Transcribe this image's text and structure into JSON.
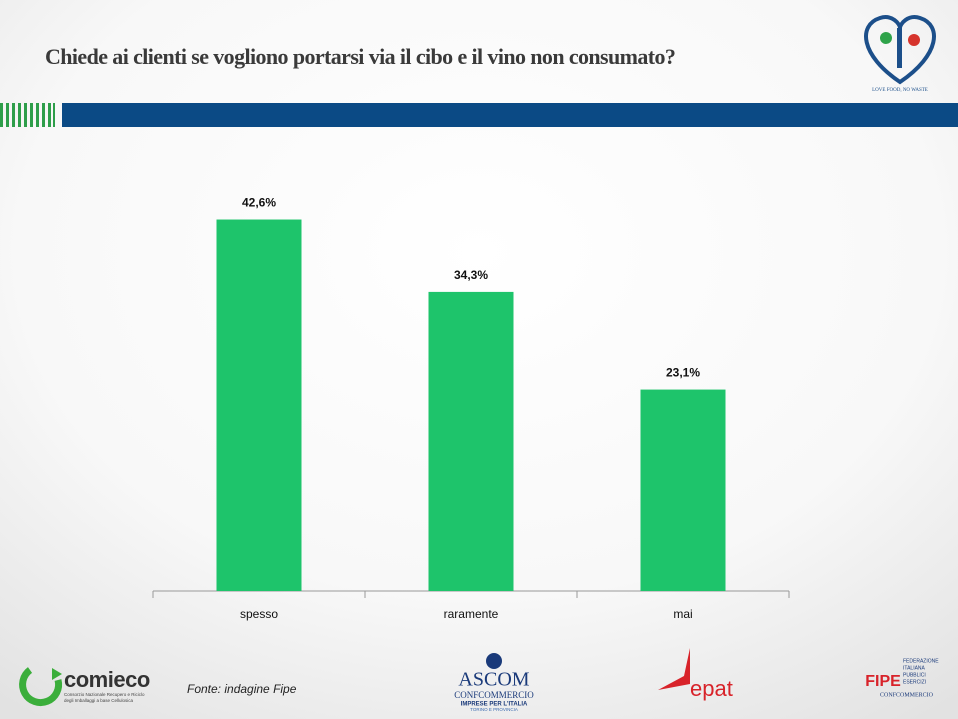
{
  "chart_data": {
    "type": "bar",
    "title": "Chiede ai clienti se vogliono portarsi via il cibo e il vino non consumato?",
    "categories": [
      "spesso",
      "raramente",
      "mai"
    ],
    "values": [
      42.6,
      34.3,
      23.1
    ],
    "value_labels": [
      "42,6%",
      "34,3%",
      "23,1%"
    ],
    "color": "#1ec46b",
    "ylim": [
      0,
      50
    ]
  },
  "source": "Fonte: indagine Fipe",
  "logos": {
    "heart": "LOVE FOOD, NO WASTE",
    "comieco": "comieco",
    "comieco_sub1": "Consorzio Nazionale Recupero e Riciclo",
    "comieco_sub2": "degli Imballaggi a base Cellulosica",
    "ascom": "ASCOM",
    "ascom_sub1": "CONFCOMMERCIO",
    "ascom_sub2": "IMPRESE PER L'ITALIA",
    "ascom_sub3": "TORINO E PROVINCIA",
    "epat": "epat",
    "fipe_1": "FEDERAZIONE",
    "fipe_2": "ITALIANA",
    "fipe_3": "PUBBLICI",
    "fipe_4": "ESERCIZI",
    "fipe": "FIPE",
    "fipe_sub": "CONFCOMMERCIO"
  }
}
